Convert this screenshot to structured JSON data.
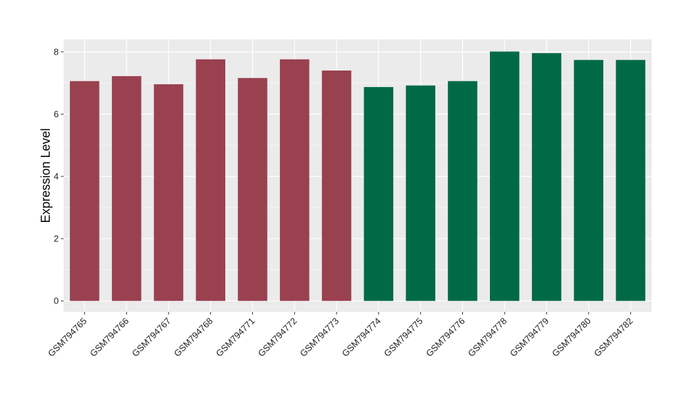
{
  "chart_data": {
    "type": "bar",
    "categories": [
      "GSM794765",
      "GSM794766",
      "GSM794767",
      "GSM794768",
      "GSM794771",
      "GSM794772",
      "GSM794773",
      "GSM794774",
      "GSM794775",
      "GSM794776",
      "GSM794778",
      "GSM794779",
      "GSM794780",
      "GSM794782"
    ],
    "values": [
      7.06,
      7.22,
      6.96,
      7.76,
      7.16,
      7.76,
      7.4,
      6.87,
      6.92,
      7.06,
      8.01,
      7.96,
      7.74,
      7.74
    ],
    "groups": [
      1,
      1,
      1,
      1,
      1,
      1,
      1,
      2,
      2,
      2,
      2,
      2,
      2,
      2
    ],
    "group_colors": {
      "1": "#9a4150",
      "2": "#006a46"
    },
    "title": "",
    "xlabel": "",
    "ylabel": "Expression Level",
    "ylim": [
      -0.35,
      8.4
    ],
    "yticks": [
      0,
      2,
      4,
      6,
      8
    ],
    "grid": true,
    "legend": "none"
  },
  "colors": {
    "panel_background": "#ebebeb",
    "grid_major": "#ffffff",
    "grid_minor": "#f5f5f5"
  }
}
